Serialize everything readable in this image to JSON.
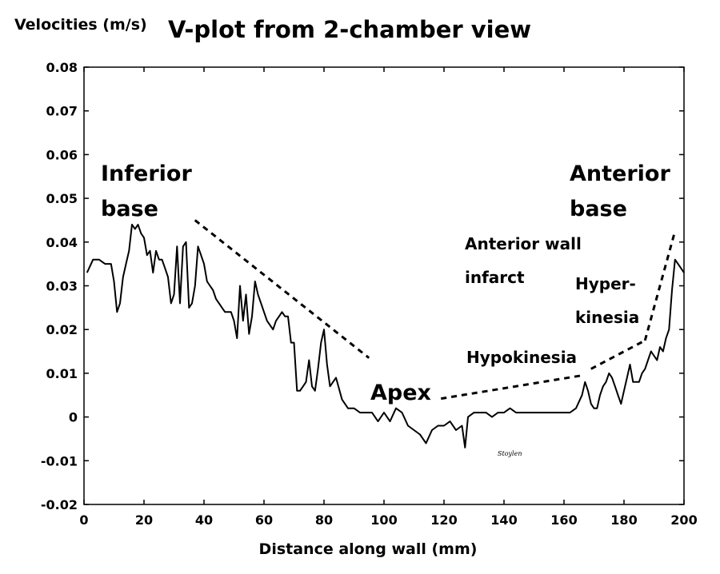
{
  "chart_data": {
    "type": "line",
    "title": "V-plot from 2-chamber view",
    "ylabel": "Velocities (m/s)",
    "xlabel": "Distance along wall (mm)",
    "xlim": [
      0,
      200
    ],
    "ylim": [
      -0.02,
      0.08
    ],
    "x_ticks": [
      "0",
      "20",
      "40",
      "60",
      "80",
      "100",
      "120",
      "140",
      "160",
      "180",
      "200"
    ],
    "y_ticks": [
      "0.08",
      "0.07",
      "0.06",
      "0.05",
      "0.04",
      "0.03",
      "0.02",
      "0.01",
      "0",
      "-0.01",
      "-0.02"
    ],
    "grid": false,
    "series": [
      {
        "x": [
          1,
          3,
          5,
          7,
          9,
          10,
          11,
          12,
          13,
          14,
          15,
          16,
          17,
          18,
          19,
          20,
          21,
          22,
          23,
          24,
          25,
          26,
          27,
          28,
          29,
          30,
          31,
          32,
          33,
          34,
          35,
          36,
          37,
          38,
          39,
          40,
          41,
          42,
          43,
          44,
          45,
          46,
          47,
          48,
          49,
          50,
          51,
          52,
          53,
          54,
          55,
          56,
          57,
          58,
          59,
          60,
          61,
          62,
          63,
          64,
          65,
          66,
          67,
          68,
          69,
          70,
          71,
          72,
          73,
          74,
          75,
          76,
          77,
          78,
          79,
          80,
          81,
          82,
          84,
          86,
          88,
          90,
          92,
          94,
          96,
          98,
          100,
          102,
          104,
          106,
          108,
          110,
          112,
          114,
          116,
          118,
          120,
          122,
          124,
          126,
          127,
          128,
          130,
          132,
          134,
          136,
          138,
          140,
          142,
          144,
          146,
          148,
          150,
          152,
          154,
          156,
          158,
          160,
          162,
          164,
          166,
          167,
          168,
          169,
          170,
          171,
          172,
          173,
          174,
          175,
          176,
          177,
          178,
          179,
          180,
          181,
          182,
          183,
          184,
          185,
          186,
          187,
          188,
          189,
          190,
          191,
          192,
          193,
          194,
          195,
          196,
          197,
          198,
          199,
          200
        ],
        "y": [
          0.033,
          0.036,
          0.036,
          0.035,
          0.035,
          0.031,
          0.024,
          0.026,
          0.032,
          0.035,
          0.038,
          0.044,
          0.043,
          0.044,
          0.042,
          0.041,
          0.037,
          0.038,
          0.033,
          0.038,
          0.036,
          0.036,
          0.034,
          0.032,
          0.026,
          0.028,
          0.039,
          0.026,
          0.039,
          0.04,
          0.025,
          0.026,
          0.03,
          0.039,
          0.037,
          0.035,
          0.031,
          0.03,
          0.029,
          0.027,
          0.026,
          0.025,
          0.024,
          0.024,
          0.024,
          0.022,
          0.018,
          0.03,
          0.022,
          0.028,
          0.019,
          0.023,
          0.031,
          0.028,
          0.026,
          0.024,
          0.022,
          0.021,
          0.02,
          0.022,
          0.023,
          0.024,
          0.023,
          0.023,
          0.017,
          0.017,
          0.006,
          0.006,
          0.007,
          0.008,
          0.013,
          0.007,
          0.006,
          0.011,
          0.017,
          0.02,
          0.012,
          0.007,
          0.009,
          0.004,
          0.002,
          0.002,
          0.001,
          0.001,
          0.001,
          -0.001,
          0.001,
          -0.001,
          0.002,
          0.001,
          -0.002,
          -0.003,
          -0.004,
          -0.006,
          -0.003,
          -0.002,
          -0.002,
          -0.001,
          -0.003,
          -0.002,
          -0.007,
          0.0,
          0.001,
          0.001,
          0.001,
          0.0,
          0.001,
          0.001,
          0.002,
          0.001,
          0.001,
          0.001,
          0.001,
          0.001,
          0.001,
          0.001,
          0.001,
          0.001,
          0.001,
          0.002,
          0.005,
          0.008,
          0.006,
          0.003,
          0.002,
          0.002,
          0.005,
          0.007,
          0.008,
          0.01,
          0.009,
          0.007,
          0.005,
          0.003,
          0.006,
          0.009,
          0.012,
          0.008,
          0.008,
          0.008,
          0.01,
          0.011,
          0.013,
          0.015,
          0.014,
          0.013,
          0.016,
          0.015,
          0.018,
          0.02,
          0.029,
          0.036,
          0.035,
          0.034,
          0.033
        ]
      }
    ],
    "annotations": {
      "inferior_base": "Inferior\nbase",
      "anterior_base": "Anterior\nbase",
      "apex": "Apex",
      "anterior_wall_infarct": "Anterior wall\ninfarct",
      "hyperkinesia": "Hyper-\nkinesia",
      "hypokinesia": "Hypokinesia",
      "signature": "Stoylen"
    },
    "dashed_lines": [
      {
        "x": [
          37,
          95
        ],
        "y": [
          0.045,
          0.0135
        ]
      },
      {
        "x": [
          119,
          166
        ],
        "y": [
          0.0042,
          0.0095
        ]
      },
      {
        "x": [
          169,
          187
        ],
        "y": [
          0.011,
          0.0175
        ]
      },
      {
        "x": [
          187,
          197
        ],
        "y": [
          0.0175,
          0.0425
        ]
      }
    ]
  }
}
